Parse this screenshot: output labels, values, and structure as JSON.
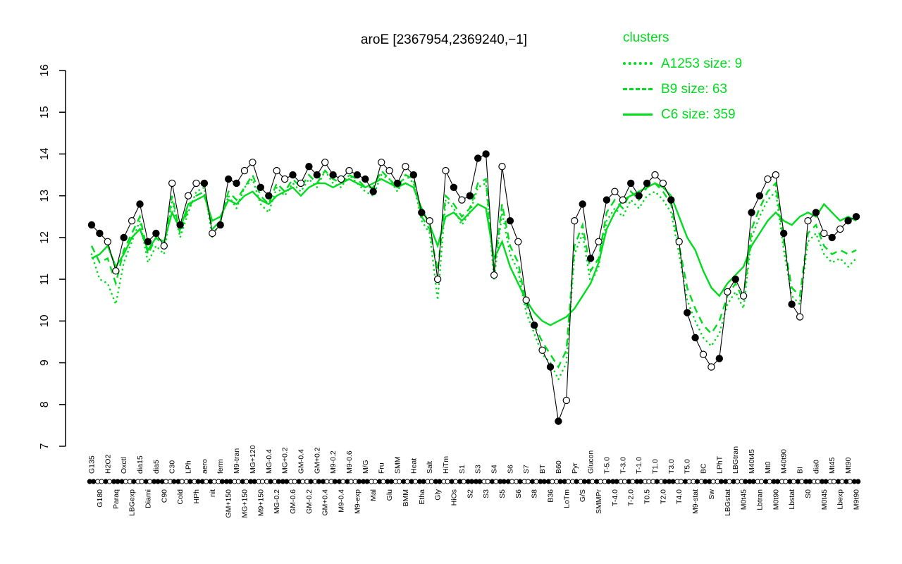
{
  "figure": {
    "colors": {
      "cluster_green": "#00dd1e",
      "gene_black": "#000000",
      "background": "#ffffff"
    }
  },
  "legend": {
    "title": "clusters",
    "items": [
      {
        "label": "A1253 size: 9",
        "line_style": "dotted"
      },
      {
        "label": "B9 size: 63",
        "line_style": "dashed"
      },
      {
        "label": "C6 size: 359",
        "line_style": "solid"
      }
    ]
  },
  "chart_data": {
    "type": "line",
    "title": "aroE [2367954,2369240,−1]",
    "xlabel": "",
    "ylabel": "",
    "ylim": [
      7,
      16
    ],
    "yticks": [
      7,
      8,
      9,
      10,
      11,
      12,
      13,
      14,
      15,
      16
    ],
    "grid": false,
    "legend_position": "top-right",
    "x_label_layout": "alternating",
    "categories": [
      "G135",
      "G180",
      "H2O2",
      "Paraq",
      "Oxctl",
      "LBGexp",
      "dia15",
      "Diami",
      "dia5",
      "C90",
      "C30",
      "Cold",
      "LPh",
      "HPh",
      "aero",
      "nit",
      "ferm",
      "GM+150",
      "M9-tran",
      "MG+150",
      "MG+120",
      "M9+150",
      "MG-0.4",
      "MG-0.2",
      "MG+0.2",
      "GM-0.6",
      "GM-0.4",
      "GM-0.2",
      "GM+0.2",
      "GM+0.4",
      "M9-0.2",
      "M9-0.4",
      "M9-0.6",
      "M9-exp",
      "M/G",
      "Mal",
      "Fru",
      "Glu",
      "SMM",
      "BMM",
      "Heat",
      "Etha",
      "Salt",
      "Gly",
      "HiTm",
      "HiOs",
      "S1",
      "S2",
      "S3",
      "S3",
      "S4",
      "S5",
      "S6",
      "S6",
      "S7",
      "S8",
      "BT",
      "B36",
      "B60",
      "LoTm",
      "Pyr",
      "G/S",
      "Glucon",
      "SMMPr",
      "T-5.0",
      "T-4.0",
      "T-3.0",
      "T-2.0",
      "T-1.0",
      "T0.5",
      "T1.0",
      "T2.0",
      "T3.0",
      "T4.0",
      "T5.0",
      "M9-stat",
      "BC",
      "Sw",
      "LPhT",
      "LBGstat",
      "LBGtran",
      "M0t45",
      "M40t45",
      "Lbtran",
      "Mt0",
      "M0t90",
      "M40t90",
      "Lbstat",
      "BI",
      "S0",
      "dia0",
      "M0t45",
      "Mt45",
      "Lbexp",
      "Mt90",
      "M9t90"
    ],
    "series": [
      {
        "name": "aroE",
        "role": "gene",
        "color": "#000000",
        "style": "solid-markers",
        "values": [
          12.3,
          12.1,
          11.9,
          11.2,
          12.0,
          12.4,
          12.8,
          11.9,
          12.1,
          11.8,
          13.3,
          12.3,
          13.0,
          13.3,
          13.3,
          12.1,
          12.3,
          13.4,
          13.3,
          13.6,
          13.8,
          13.2,
          13.0,
          13.6,
          13.4,
          13.5,
          13.3,
          13.7,
          13.5,
          13.8,
          13.5,
          13.4,
          13.6,
          13.5,
          13.4,
          13.1,
          13.8,
          13.6,
          13.3,
          13.7,
          13.5,
          12.6,
          12.4,
          11.0,
          13.6,
          13.2,
          12.9,
          13.0,
          13.9,
          14.0,
          11.1,
          13.7,
          12.4,
          11.9,
          10.5,
          9.9,
          9.3,
          8.9,
          7.6,
          8.1,
          12.4,
          12.8,
          11.5,
          11.9,
          12.9,
          13.1,
          12.9,
          13.3,
          13.0,
          13.3,
          13.5,
          13.3,
          12.9,
          11.9,
          10.2,
          9.6,
          9.2,
          8.9,
          9.1,
          10.7,
          11.0,
          10.6,
          12.6,
          13.0,
          13.4,
          13.5,
          12.1,
          10.4,
          10.1,
          12.4,
          12.6,
          12.1,
          12.0,
          12.2,
          12.4,
          12.5
        ]
      },
      {
        "name": "A1253",
        "role": "cluster",
        "size": 9,
        "color": "#00dd1e",
        "style": "dotted",
        "values": [
          11.6,
          11.0,
          10.9,
          10.4,
          11.4,
          11.9,
          12.4,
          11.4,
          11.8,
          11.6,
          12.9,
          12.0,
          12.6,
          13.1,
          13.2,
          12.0,
          12.4,
          13.0,
          12.7,
          13.2,
          13.4,
          12.8,
          12.6,
          13.2,
          13.0,
          13.3,
          13.1,
          13.4,
          13.2,
          13.6,
          13.3,
          13.2,
          13.5,
          13.3,
          13.1,
          13.0,
          13.5,
          13.4,
          13.1,
          13.5,
          13.3,
          12.4,
          12.1,
          10.5,
          12.9,
          12.7,
          12.3,
          12.6,
          13.2,
          13.3,
          11.0,
          12.6,
          11.6,
          11.2,
          10.2,
          9.7,
          9.2,
          9.0,
          8.6,
          9.0,
          11.6,
          12.1,
          10.9,
          11.3,
          12.4,
          12.7,
          12.5,
          12.9,
          12.7,
          13.0,
          13.1,
          12.9,
          12.6,
          11.6,
          10.5,
          10.0,
          9.6,
          9.4,
          9.7,
          10.4,
          10.7,
          10.3,
          12.0,
          12.5,
          12.9,
          13.1,
          11.7,
          10.6,
          10.4,
          11.9,
          12.1,
          11.6,
          11.4,
          11.5,
          11.3,
          11.5
        ]
      },
      {
        "name": "B9",
        "role": "cluster",
        "size": 63,
        "color": "#00dd1e",
        "style": "dashed",
        "values": [
          11.8,
          11.4,
          11.5,
          10.9,
          11.7,
          12.1,
          12.5,
          11.6,
          12.0,
          11.8,
          13.0,
          12.1,
          12.7,
          13.0,
          13.1,
          12.2,
          12.4,
          13.1,
          12.9,
          13.2,
          13.5,
          13.0,
          12.8,
          13.3,
          13.1,
          13.4,
          13.2,
          13.5,
          13.3,
          13.6,
          13.4,
          13.3,
          13.5,
          13.4,
          13.2,
          13.2,
          13.6,
          13.4,
          13.2,
          13.5,
          13.4,
          12.5,
          12.2,
          11.2,
          13.0,
          12.8,
          12.5,
          12.7,
          13.3,
          13.4,
          11.2,
          12.8,
          11.8,
          11.4,
          10.4,
          9.9,
          9.5,
          9.2,
          8.9,
          9.3,
          11.8,
          12.3,
          11.2,
          11.5,
          12.6,
          12.9,
          12.7,
          13.1,
          12.9,
          13.2,
          13.3,
          13.1,
          12.8,
          11.8,
          10.8,
          10.3,
          9.9,
          9.7,
          10.0,
          10.6,
          10.9,
          10.5,
          12.2,
          12.7,
          13.1,
          13.3,
          11.9,
          10.8,
          10.6,
          12.1,
          12.3,
          11.8,
          11.6,
          11.7,
          11.6,
          11.7
        ]
      },
      {
        "name": "C6",
        "role": "cluster",
        "size": 359,
        "color": "#00dd1e",
        "style": "solid",
        "values": [
          11.5,
          11.6,
          11.8,
          11.3,
          11.6,
          12.0,
          12.2,
          11.7,
          12.0,
          11.9,
          12.6,
          12.2,
          12.8,
          12.9,
          13.0,
          12.4,
          12.5,
          12.9,
          12.8,
          13.0,
          13.1,
          12.9,
          12.8,
          13.0,
          13.1,
          13.2,
          13.0,
          13.2,
          13.3,
          13.3,
          13.2,
          13.3,
          13.4,
          13.3,
          13.2,
          13.3,
          13.4,
          13.3,
          13.2,
          13.3,
          13.2,
          12.7,
          12.3,
          11.8,
          12.5,
          12.6,
          12.4,
          12.6,
          12.8,
          12.7,
          11.5,
          11.9,
          11.3,
          10.9,
          10.5,
          10.2,
          10.0,
          9.9,
          10.0,
          10.1,
          10.3,
          10.6,
          10.9,
          11.4,
          12.2,
          12.6,
          12.9,
          13.0,
          13.1,
          13.2,
          13.3,
          13.2,
          13.0,
          12.5,
          12.0,
          11.7,
          11.2,
          10.8,
          10.6,
          10.9,
          11.1,
          11.3,
          11.8,
          12.1,
          12.4,
          12.6,
          12.4,
          12.3,
          12.5,
          12.6,
          12.5,
          12.8,
          12.6,
          12.4,
          12.5,
          12.4
        ]
      }
    ],
    "marker_fill_pattern": "ffoofofffoofoofofffooffoofoffofoofffoofoffooofofffoofoofoffooffofoofffoofoffoofofoffooffoofofoff"
  }
}
